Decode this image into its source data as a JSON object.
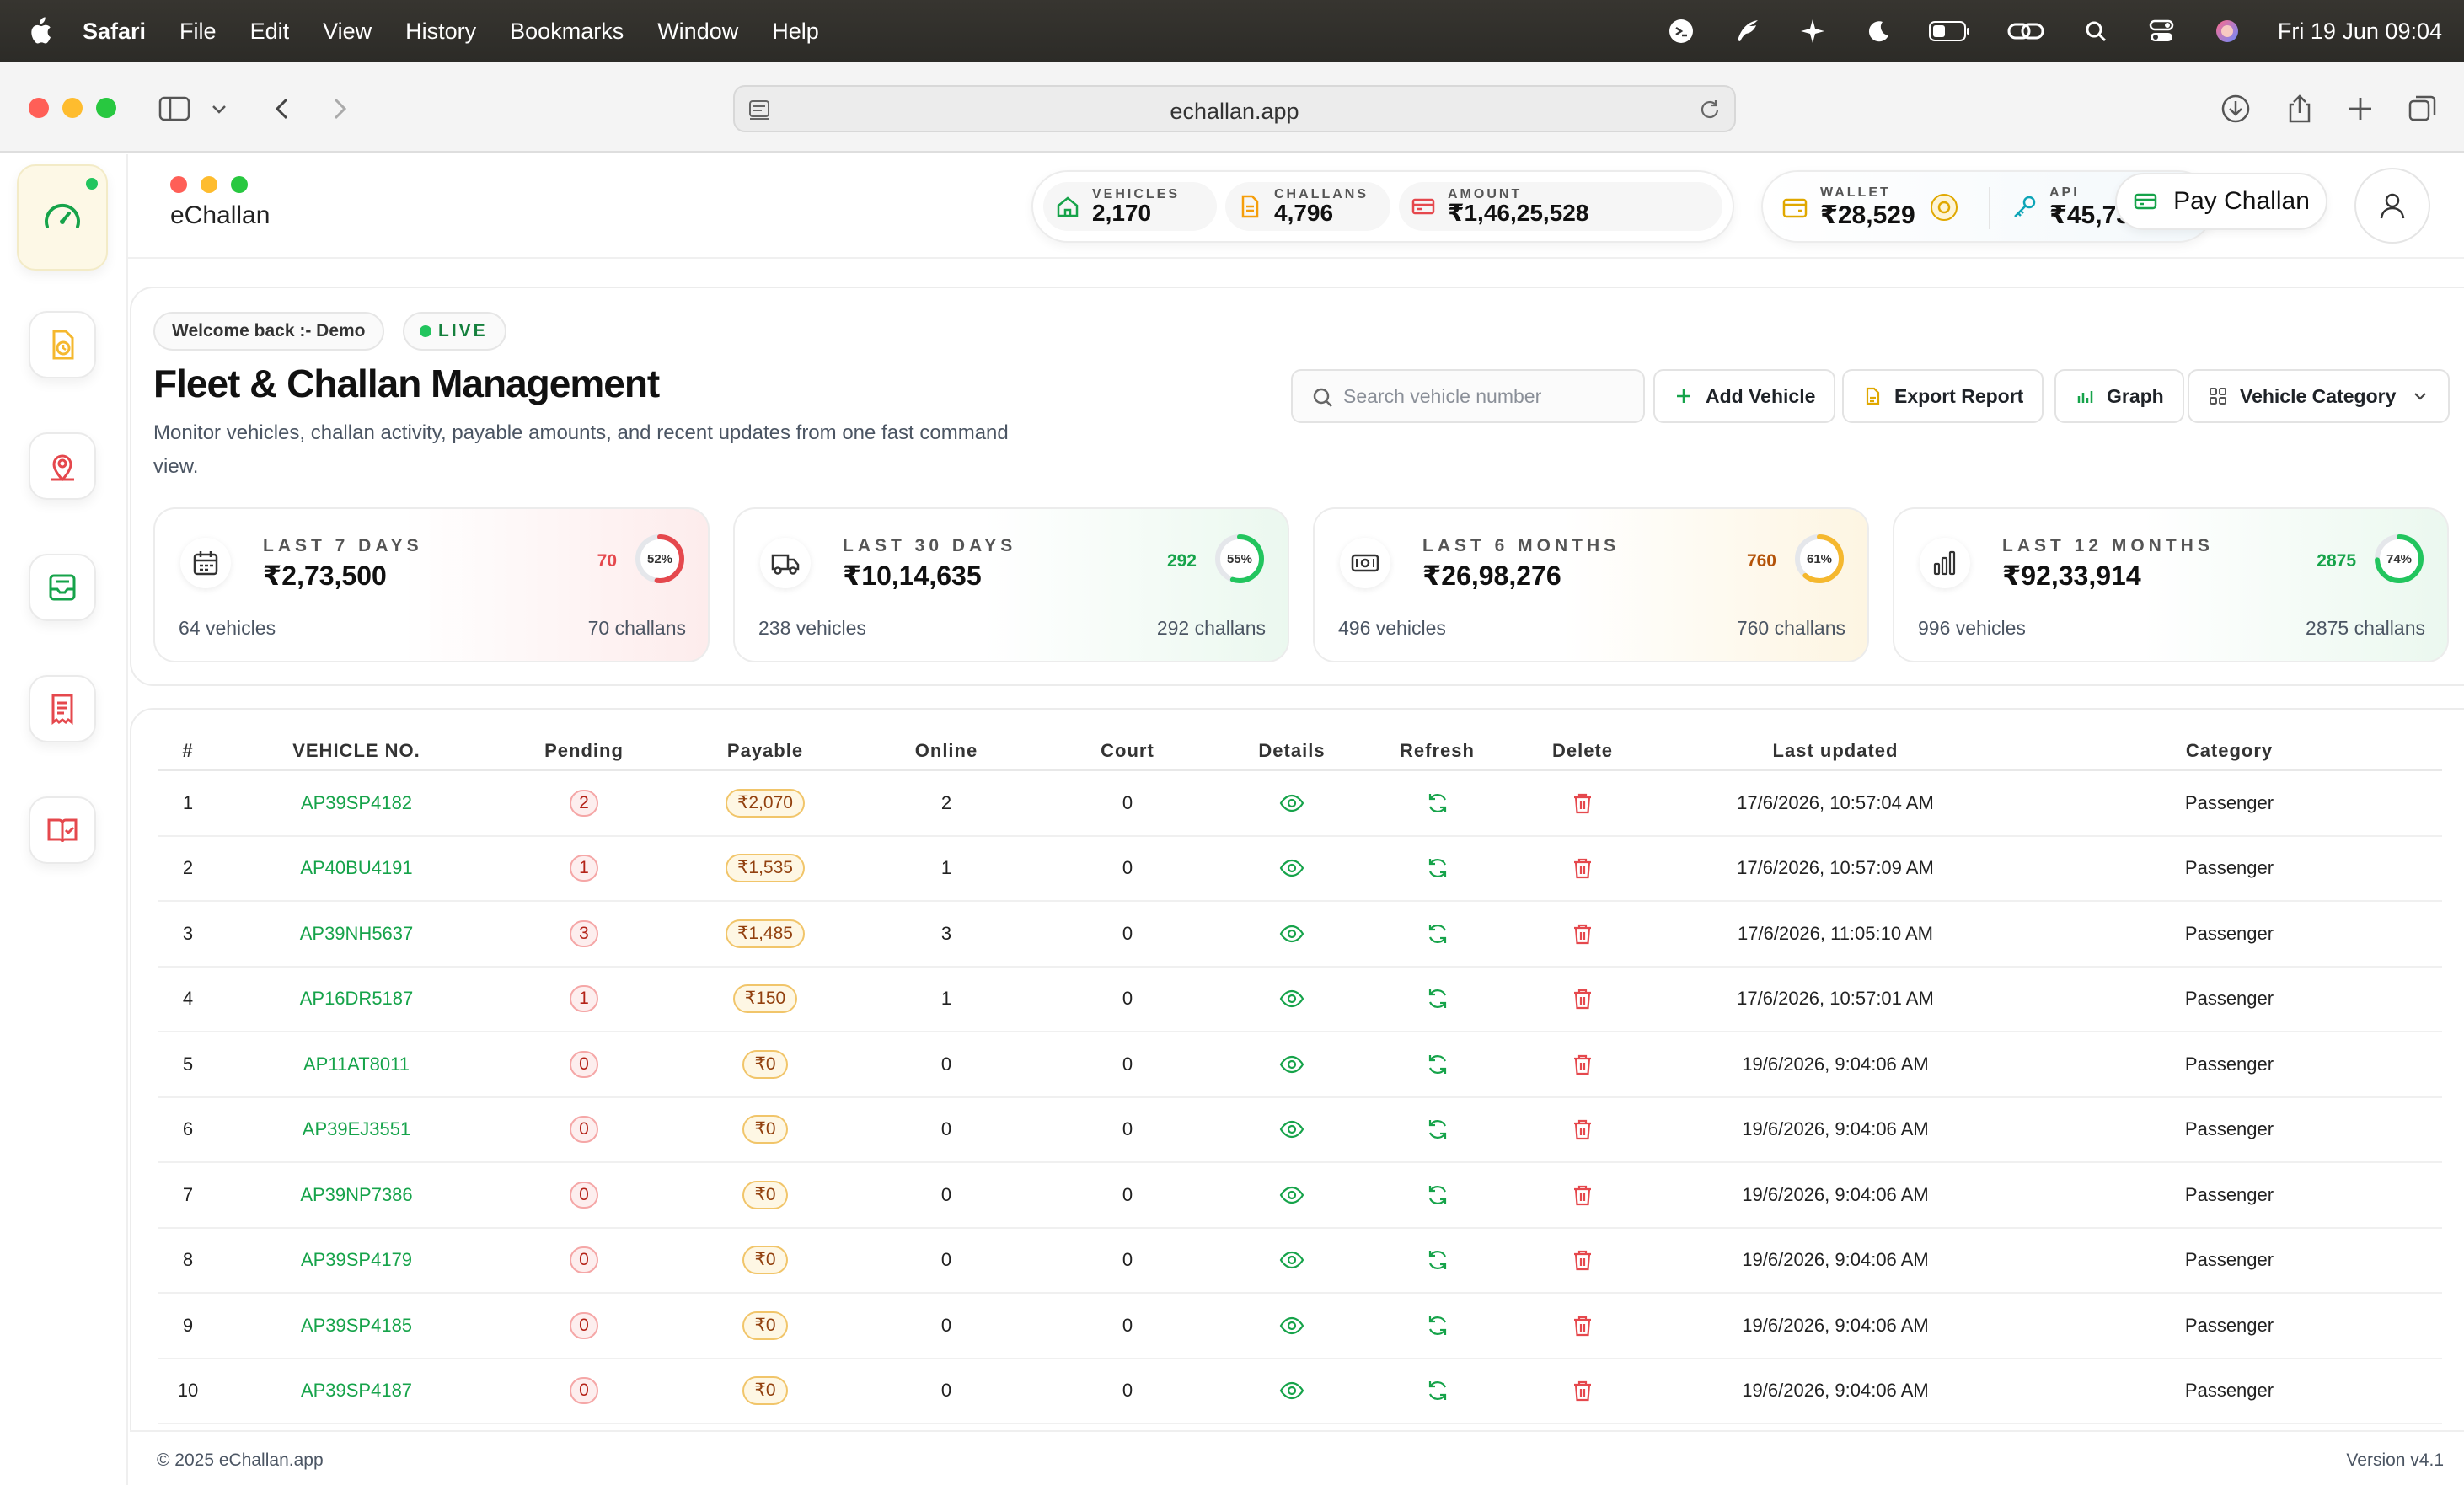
{
  "menubar": {
    "app": "Safari",
    "items": [
      "File",
      "Edit",
      "View",
      "History",
      "Bookmarks",
      "Window",
      "Help"
    ],
    "clock": "Fri 19 Jun  09:04"
  },
  "browser": {
    "url": "echallan.app"
  },
  "header": {
    "brand": "eChallan",
    "stats": [
      {
        "label": "VEHICLES",
        "value": "2,170"
      },
      {
        "label": "CHALLANS",
        "value": "4,796"
      },
      {
        "label": "AMOUNT",
        "value": "₹1,46,25,528"
      }
    ],
    "wallet": {
      "label": "WALLET",
      "value": "₹28,529"
    },
    "api": {
      "label": "API",
      "value": "₹45,734"
    },
    "pay_label": "Pay Challan"
  },
  "dashboard": {
    "welcome": "Welcome back :- Demo",
    "live": "LIVE",
    "title": "Fleet & Challan Management",
    "subtitle": "Monitor vehicles, challan activity, payable amounts, and recent updates from one fast command view.",
    "search_placeholder": "Search vehicle number",
    "add_vehicle": "Add Vehicle",
    "export_report": "Export Report",
    "graph": "Graph",
    "vehicle_category": "Vehicle Category",
    "kpis": [
      {
        "label": "LAST 7 DAYS",
        "amount": "₹2,73,500",
        "count": "70",
        "percent": "52%",
        "pct": 52,
        "color": "#e5484d",
        "vehicles": "64 vehicles",
        "challans": "70 challans"
      },
      {
        "label": "LAST 30 DAYS",
        "amount": "₹10,14,635",
        "count": "292",
        "percent": "55%",
        "pct": 55,
        "color": "#22c55e",
        "vehicles": "238 vehicles",
        "challans": "292 challans"
      },
      {
        "label": "LAST 6 MONTHS",
        "amount": "₹26,98,276",
        "count": "760",
        "percent": "61%",
        "pct": 61,
        "color": "#f5b82e",
        "vehicles": "496 vehicles",
        "challans": "760 challans"
      },
      {
        "label": "LAST 12 MONTHS",
        "amount": "₹92,33,914",
        "count": "2875",
        "percent": "74%",
        "pct": 74,
        "color": "#22c55e",
        "vehicles": "996 vehicles",
        "challans": "2875 challans"
      }
    ]
  },
  "table": {
    "headers": [
      "#",
      "VEHICLE NO.",
      "Pending",
      "Payable",
      "Online",
      "Court",
      "Details",
      "Refresh",
      "Delete",
      "Last updated",
      "Category"
    ],
    "rows": [
      {
        "n": "1",
        "vehicle": "AP39SP4182",
        "pending": "2",
        "payable": "₹2,070",
        "online": "2",
        "court": "0",
        "updated": "17/6/2026, 10:57:04 AM",
        "category": "Passenger"
      },
      {
        "n": "2",
        "vehicle": "AP40BU4191",
        "pending": "1",
        "payable": "₹1,535",
        "online": "1",
        "court": "0",
        "updated": "17/6/2026, 10:57:09 AM",
        "category": "Passenger"
      },
      {
        "n": "3",
        "vehicle": "AP39NH5637",
        "pending": "3",
        "payable": "₹1,485",
        "online": "3",
        "court": "0",
        "updated": "17/6/2026, 11:05:10 AM",
        "category": "Passenger"
      },
      {
        "n": "4",
        "vehicle": "AP16DR5187",
        "pending": "1",
        "payable": "₹150",
        "online": "1",
        "court": "0",
        "updated": "17/6/2026, 10:57:01 AM",
        "category": "Passenger"
      },
      {
        "n": "5",
        "vehicle": "AP11AT8011",
        "pending": "0",
        "payable": "₹0",
        "online": "0",
        "court": "0",
        "updated": "19/6/2026, 9:04:06 AM",
        "category": "Passenger"
      },
      {
        "n": "6",
        "vehicle": "AP39EJ3551",
        "pending": "0",
        "payable": "₹0",
        "online": "0",
        "court": "0",
        "updated": "19/6/2026, 9:04:06 AM",
        "category": "Passenger"
      },
      {
        "n": "7",
        "vehicle": "AP39NP7386",
        "pending": "0",
        "payable": "₹0",
        "online": "0",
        "court": "0",
        "updated": "19/6/2026, 9:04:06 AM",
        "category": "Passenger"
      },
      {
        "n": "8",
        "vehicle": "AP39SP4179",
        "pending": "0",
        "payable": "₹0",
        "online": "0",
        "court": "0",
        "updated": "19/6/2026, 9:04:06 AM",
        "category": "Passenger"
      },
      {
        "n": "9",
        "vehicle": "AP39SP4185",
        "pending": "0",
        "payable": "₹0",
        "online": "0",
        "court": "0",
        "updated": "19/6/2026, 9:04:06 AM",
        "category": "Passenger"
      },
      {
        "n": "10",
        "vehicle": "AP39SP4187",
        "pending": "0",
        "payable": "₹0",
        "online": "0",
        "court": "0",
        "updated": "19/6/2026, 9:04:06 AM",
        "category": "Passenger"
      }
    ]
  },
  "footer": {
    "copyright": "© 2025 eChallan.app",
    "version": "Version v4.1"
  },
  "colors": {
    "accent": "#16a34a",
    "danger": "#e5484d",
    "amber": "#f5b82e"
  }
}
